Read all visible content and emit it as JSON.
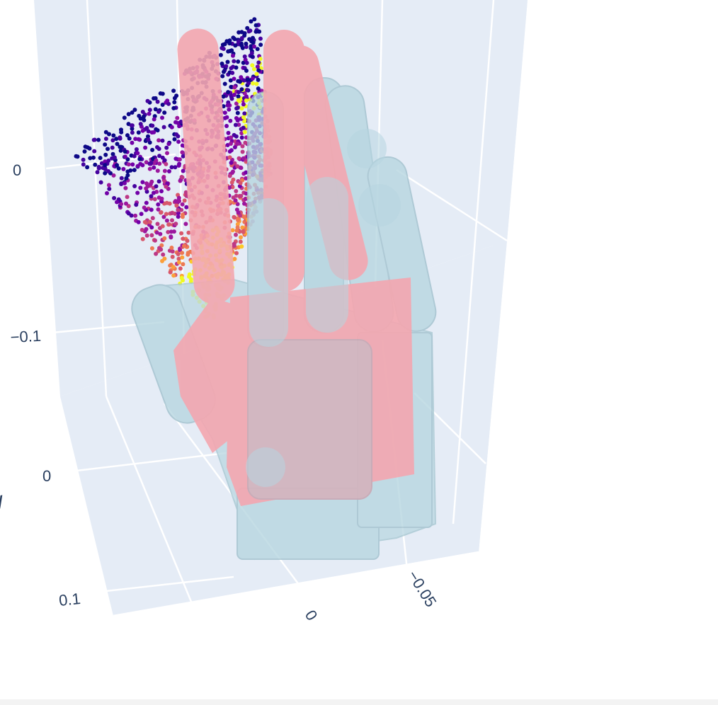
{
  "chart_data": {
    "type": "scatter3d",
    "title": "",
    "axes": {
      "z_ticks": [
        "0",
        "−0.1"
      ],
      "y_ticks": [
        "0",
        "0.1"
      ],
      "y_title": "y",
      "x_ticks": [
        "0",
        "−0.05"
      ]
    },
    "grid": true,
    "scene_background": "#e5ecf6",
    "grid_color": "#ffffff",
    "point_colorscale": [
      "#0d0887",
      "#46039f",
      "#7201a8",
      "#9c179e",
      "#bd3786",
      "#d8576b",
      "#ed7953",
      "#fb9f3a",
      "#fdca26",
      "#f0f921"
    ],
    "meshes": [
      {
        "name": "hand-pink",
        "color": "#f4a7b0",
        "opacity": 0.9
      },
      {
        "name": "hand-lightblue",
        "color": "#b6d6e0",
        "opacity": 0.65
      }
    ]
  }
}
